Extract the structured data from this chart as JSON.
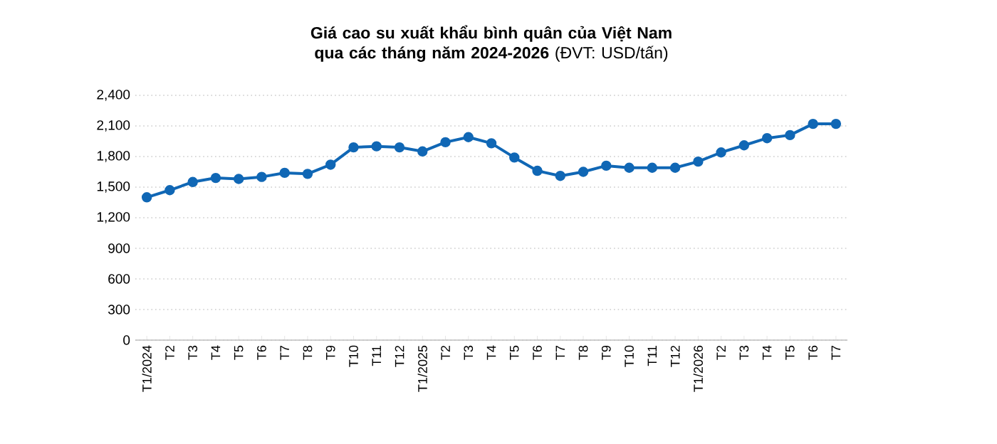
{
  "chart_data": {
    "type": "line",
    "title": "**Giá cao su xuất khẩu bình quân của Việt Nam qua các tháng năm 2024-2026** (ĐVT: USD/tấn)",
    "categories": [
      "T1/2024",
      "T2",
      "T3",
      "T4",
      "T5",
      "T6",
      "T7",
      "T8",
      "T9",
      "T10",
      "T11",
      "T12",
      "T1/2025",
      "T2",
      "T3",
      "T4",
      "T5",
      "T6",
      "T7",
      "T8",
      "T9",
      "T10",
      "T11",
      "T12",
      "T1/2026",
      "T2",
      "T3",
      "T4",
      "T5",
      "T6",
      "T7"
    ],
    "series": [
      {
        "color": "#1067b5",
        "values": [
          1400,
          1470,
          1550,
          1590,
          1580,
          1600,
          1640,
          1630,
          1720,
          1890,
          1900,
          1890,
          1850,
          1940,
          1990,
          1930,
          1790,
          1660,
          1610,
          1650,
          1710,
          1690,
          1690,
          1690,
          1750,
          1840,
          1910,
          1980,
          2010,
          2120,
          2120
        ]
      }
    ],
    "ylim": [
      0,
      2400
    ],
    "yticks": [
      0,
      300,
      600,
      900,
      {
        "value": 1200,
        "label": "1,200"
      },
      {
        "value": 1500,
        "label": "1,500"
      },
      {
        "value": 1800,
        "label": "1,800"
      },
      {
        "value": 2100,
        "label": "2,100"
      },
      {
        "value": 2400,
        "label": "2,400"
      }
    ],
    "grid": "y",
    "marker": "circle",
    "line_style": "solid"
  }
}
